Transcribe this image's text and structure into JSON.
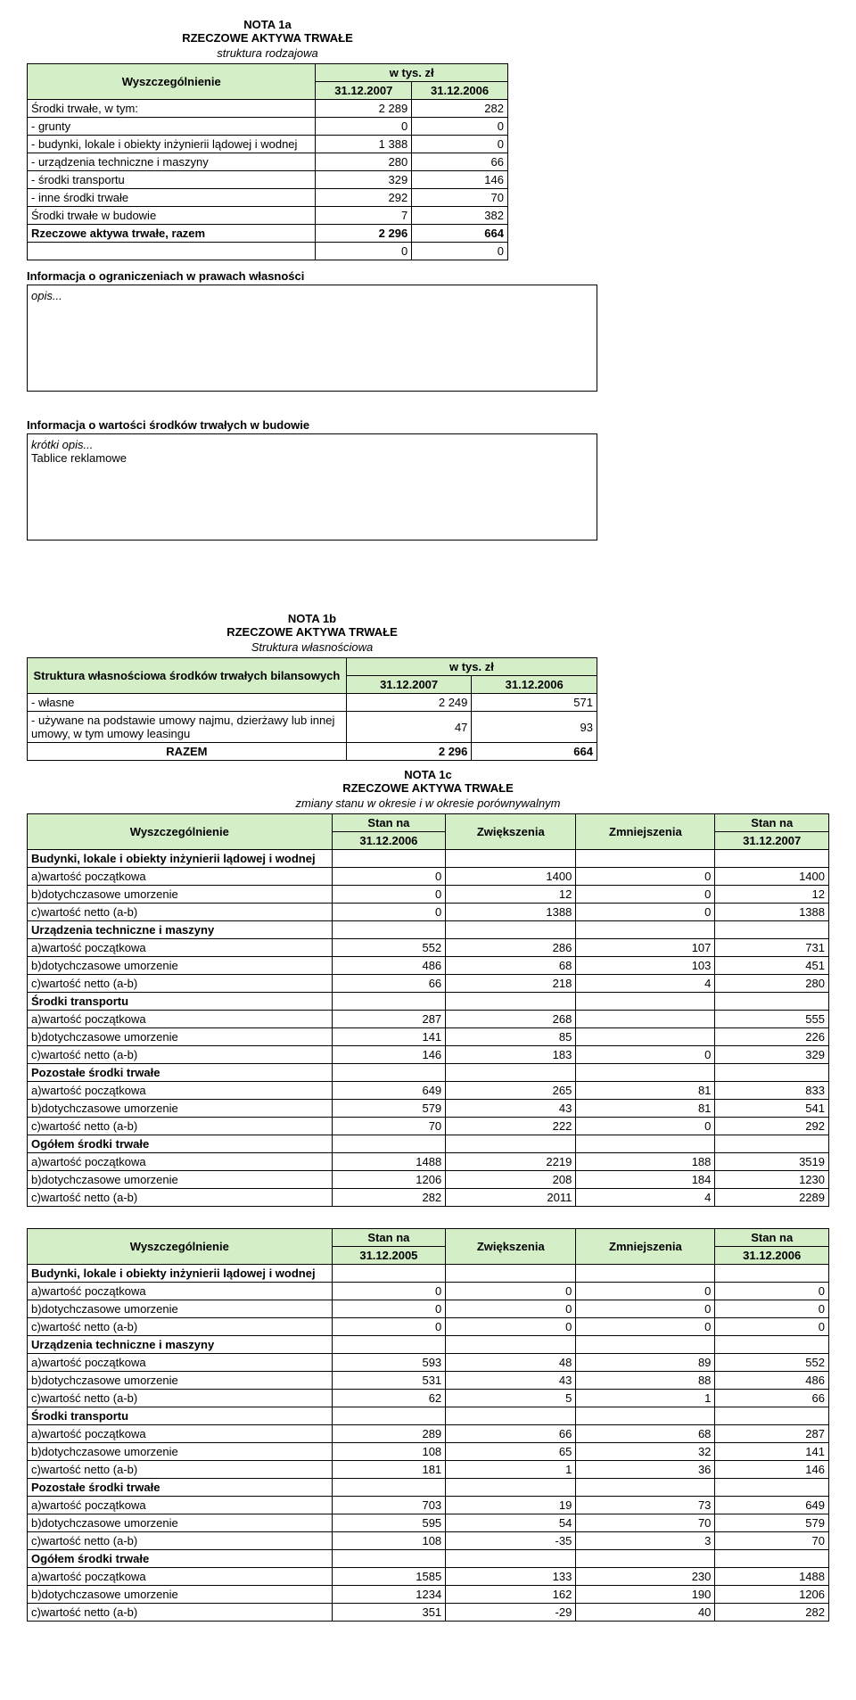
{
  "nota1a": {
    "code": "NOTA  1a",
    "title": "RZECZOWE AKTYWA TRWAŁE",
    "subtitle": "struktura rodzajowa",
    "hdr_specification": "Wyszczególnienie",
    "hdr_unit": "w tys. zł",
    "col1": "31.12.2007",
    "col2": "31.12.2006",
    "rows": [
      {
        "label": "Środki trwałe, w tym:",
        "v1": "2 289",
        "v2": "282"
      },
      {
        "label": " - grunty",
        "v1": "0",
        "v2": "0"
      },
      {
        "label": " - budynki, lokale i obiekty inżynierii lądowej i wodnej",
        "v1": "1 388",
        "v2": "0"
      },
      {
        "label": " - urządzenia techniczne i maszyny",
        "v1": "280",
        "v2": "66"
      },
      {
        "label": " - środki transportu",
        "v1": "329",
        "v2": "146"
      },
      {
        "label": " - inne środki trwałe",
        "v1": "292",
        "v2": "70"
      },
      {
        "label": "Środki trwałe w budowie",
        "v1": "7",
        "v2": "382"
      }
    ],
    "total_label": "Rzeczowe aktywa trwałe, razem",
    "total_v1": "2 296",
    "total_v2": "664",
    "blank_v1": "0",
    "blank_v2": "0"
  },
  "restrictions": {
    "heading": "Informacja o ograniczeniach w prawach własności",
    "box": "opis..."
  },
  "constr": {
    "heading": "Informacja o wartości środków trwałych w budowie",
    "box_line1": "krótki opis...",
    "box_line2": "Tablice reklamowe"
  },
  "nota1b": {
    "code": "NOTA  1b",
    "title": "RZECZOWE AKTYWA TRWAŁE",
    "subtitle": "Struktura własnościowa",
    "hdr_specification": "Struktura własnościowa środków trwałych bilansowych",
    "hdr_unit": "w tys. zł",
    "col1": "31.12.2007",
    "col2": "31.12.2006",
    "r1_label": "   - własne",
    "r1_v1": "2 249",
    "r1_v2": "571",
    "r2_label": "   - używane na podstawie umowy najmu, dzierżawy lub innej umowy, w tym umowy leasingu",
    "r2_v1": "47",
    "r2_v2": "93",
    "total_label": "RAZEM",
    "total_v1": "2 296",
    "total_v2": "664"
  },
  "nota1c": {
    "code": "NOTA  1c",
    "title": "RZECZOWE AKTYWA TRWAŁE",
    "subtitle": "zmiany stanu w okresie i w okresie porównywalnym",
    "hdr_specification": "Wyszczególnienie",
    "hdr_stan_na": "Stan na",
    "hdr_zwiek": "Zwiększenia",
    "hdr_zmniej": "Zmniejszenia",
    "main": {
      "d1": "31.12.2006",
      "d2": "31.12.2007",
      "groups": [
        {
          "head": "Budynki, lokale i obiekty inżynierii lądowej i wodnej",
          "rows": [
            {
              "l": "a)wartość początkowa",
              "a": "0",
              "b": "1400",
              "c": "0",
              "d": "1400"
            },
            {
              "l": "b)dotychczasowe umorzenie",
              "a": "0",
              "b": "12",
              "c": "0",
              "d": "12"
            },
            {
              "l": "c)wartość netto (a-b)",
              "a": "0",
              "b": "1388",
              "c": "0",
              "d": "1388"
            }
          ]
        },
        {
          "head": "Urządzenia techniczne i maszyny",
          "rows": [
            {
              "l": "a)wartość początkowa",
              "a": "552",
              "b": "286",
              "c": "107",
              "d": "731"
            },
            {
              "l": "b)dotychczasowe umorzenie",
              "a": "486",
              "b": "68",
              "c": "103",
              "d": "451"
            },
            {
              "l": "c)wartość netto (a-b)",
              "a": "66",
              "b": "218",
              "c": "4",
              "d": "280"
            }
          ]
        },
        {
          "head": "Środki transportu",
          "rows": [
            {
              "l": "a)wartość początkowa",
              "a": "287",
              "b": "268",
              "c": "",
              "d": "555"
            },
            {
              "l": "b)dotychczasowe umorzenie",
              "a": "141",
              "b": "85",
              "c": "",
              "d": "226"
            },
            {
              "l": "c)wartość netto (a-b)",
              "a": "146",
              "b": "183",
              "c": "0",
              "d": "329"
            }
          ]
        },
        {
          "head": "Pozostałe środki trwałe",
          "rows": [
            {
              "l": "a)wartość początkowa",
              "a": "649",
              "b": "265",
              "c": "81",
              "d": "833"
            },
            {
              "l": "b)dotychczasowe umorzenie",
              "a": "579",
              "b": "43",
              "c": "81",
              "d": "541"
            },
            {
              "l": "c)wartość netto (a-b)",
              "a": "70",
              "b": "222",
              "c": "0",
              "d": "292"
            }
          ]
        },
        {
          "head": "Ogółem środki trwałe",
          "rows": [
            {
              "l": "a)wartość początkowa",
              "a": "1488",
              "b": "2219",
              "c": "188",
              "d": "3519"
            },
            {
              "l": "b)dotychczasowe umorzenie",
              "a": "1206",
              "b": "208",
              "c": "184",
              "d": "1230"
            },
            {
              "l": "c)wartość netto (a-b)",
              "a": "282",
              "b": "2011",
              "c": "4",
              "d": "2289"
            }
          ]
        }
      ]
    },
    "cmp": {
      "d1": "31.12.2005",
      "d2": "31.12.2006",
      "groups": [
        {
          "head": "Budynki, lokale i obiekty inżynierii lądowej i wodnej",
          "rows": [
            {
              "l": "a)wartość początkowa",
              "a": "0",
              "b": "0",
              "c": "0",
              "d": "0"
            },
            {
              "l": "b)dotychczasowe umorzenie",
              "a": "0",
              "b": "0",
              "c": "0",
              "d": "0"
            },
            {
              "l": "c)wartość netto (a-b)",
              "a": "0",
              "b": "0",
              "c": "0",
              "d": "0"
            }
          ]
        },
        {
          "head": "Urządzenia techniczne i maszyny",
          "rows": [
            {
              "l": "a)wartość początkowa",
              "a": "593",
              "b": "48",
              "c": "89",
              "d": "552"
            },
            {
              "l": "b)dotychczasowe umorzenie",
              "a": "531",
              "b": "43",
              "c": "88",
              "d": "486"
            },
            {
              "l": "c)wartość netto (a-b)",
              "a": "62",
              "b": "5",
              "c": "1",
              "d": "66"
            }
          ]
        },
        {
          "head": "Środki transportu",
          "rows": [
            {
              "l": "a)wartość początkowa",
              "a": "289",
              "b": "66",
              "c": "68",
              "d": "287"
            },
            {
              "l": "b)dotychczasowe umorzenie",
              "a": "108",
              "b": "65",
              "c": "32",
              "d": "141"
            },
            {
              "l": "c)wartość netto (a-b)",
              "a": "181",
              "b": "1",
              "c": "36",
              "d": "146"
            }
          ]
        },
        {
          "head": "Pozostałe środki trwałe",
          "rows": [
            {
              "l": "a)wartość początkowa",
              "a": "703",
              "b": "19",
              "c": "73",
              "d": "649"
            },
            {
              "l": "b)dotychczasowe umorzenie",
              "a": "595",
              "b": "54",
              "c": "70",
              "d": "579"
            },
            {
              "l": "c)wartość netto (a-b)",
              "a": "108",
              "b": "-35",
              "c": "3",
              "d": "70"
            }
          ]
        },
        {
          "head": "Ogółem środki trwałe",
          "rows": [
            {
              "l": "a)wartość początkowa",
              "a": "1585",
              "b": "133",
              "c": "230",
              "d": "1488"
            },
            {
              "l": "b)dotychczasowe umorzenie",
              "a": "1234",
              "b": "162",
              "c": "190",
              "d": "1206"
            },
            {
              "l": "c)wartość netto (a-b)",
              "a": "351",
              "b": "-29",
              "c": "40",
              "d": "282"
            }
          ]
        }
      ]
    }
  },
  "colors": {
    "header_bg": "#d4eec8",
    "border": "#000000",
    "text": "#000000",
    "bg": "#ffffff"
  }
}
